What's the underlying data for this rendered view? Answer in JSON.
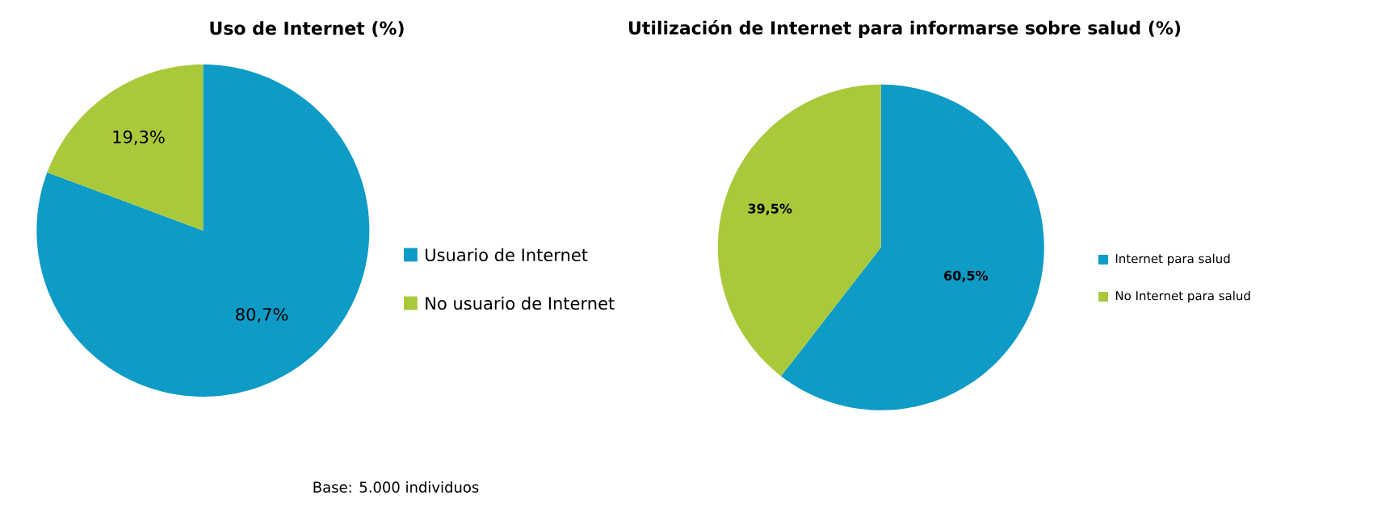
{
  "chart_data": [
    {
      "type": "pie",
      "title": "Uso de Internet (%)",
      "categories": [
        "Usuario de Internet",
        "No usuario de Internet"
      ],
      "values": [
        80.7,
        19.3
      ],
      "colors": [
        "#0e9bc6",
        "#a9c93b"
      ],
      "value_labels": [
        "80,7%",
        "19,3%"
      ],
      "legend": "right",
      "annotations": [
        "Base: 5.000 individuos"
      ]
    },
    {
      "type": "pie",
      "title": "Utilización de Internet para informarse sobre salud (%)",
      "categories": [
        "Internet para salud",
        "No Internet para salud"
      ],
      "values": [
        60.5,
        39.5
      ],
      "colors": [
        "#0e9bc6",
        "#a9c93b"
      ],
      "value_labels": [
        "60,5%",
        "39,5%"
      ],
      "legend": "right"
    }
  ]
}
